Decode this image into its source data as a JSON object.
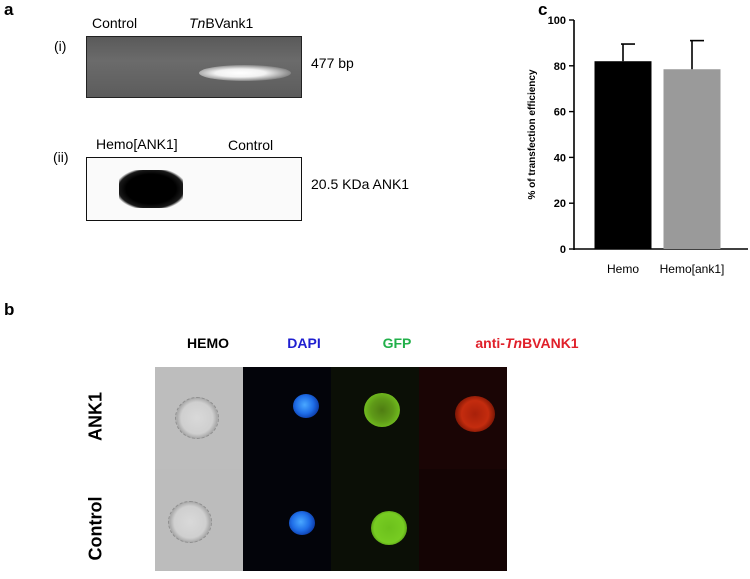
{
  "panels": {
    "a": "a",
    "b": "b",
    "c": "c"
  },
  "panel_a": {
    "gel": {
      "label": "(i)",
      "lane1": "Control",
      "lane2_italic": "Tn",
      "lane2_rest": "BVank1",
      "size": "477 bp"
    },
    "blot": {
      "label": "(ii)",
      "lane1": "Hemo[ANK1]",
      "lane2": "Control",
      "size": "20.5 KDa ANK1"
    }
  },
  "panel_b": {
    "columns": {
      "hemo": "HEMO",
      "dapi": "DAPI",
      "gfp": "GFP",
      "anti_prefix": "anti-",
      "anti_italic": "Tn",
      "anti_suffix": "BVANK1"
    },
    "rows": [
      "ANK1",
      "Control"
    ],
    "colors": {
      "dapi": "#1f1fd0",
      "gfp": "#22b04a",
      "anti": "#e0202a"
    }
  },
  "chart_data": {
    "type": "bar",
    "categories": [
      "Hemo",
      "Hemo[ank1]"
    ],
    "values": [
      82,
      78.5
    ],
    "errors": [
      7.5,
      12.5
    ],
    "colors": [
      "#000000",
      "#9a9a9a"
    ],
    "ylabel": "% of transfection efficiency",
    "ylim": [
      0,
      100
    ],
    "yticks": [
      0,
      20,
      40,
      60,
      80,
      100
    ]
  }
}
